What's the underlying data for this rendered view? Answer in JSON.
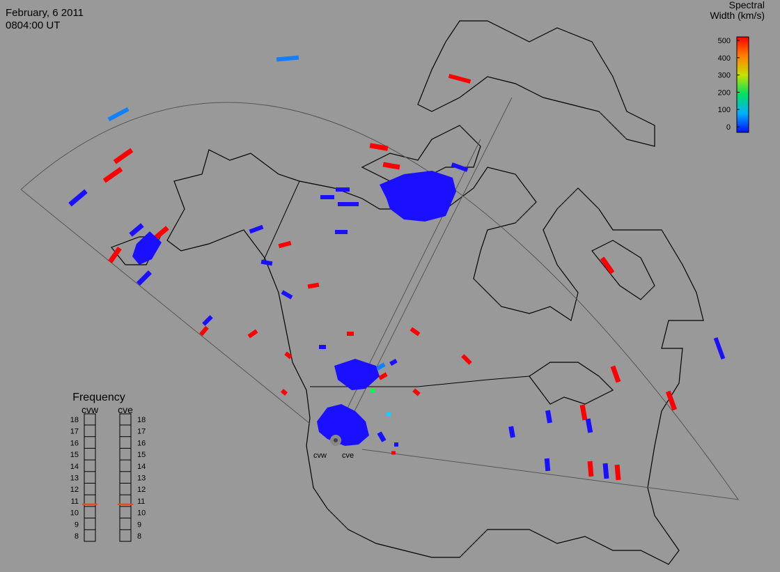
{
  "header": {
    "date": "February, 6 2011",
    "time": "0804:00 UT"
  },
  "colorbar": {
    "title_lines": [
      "Spectral",
      "Width (km/s)"
    ],
    "lim": [
      0,
      500
    ],
    "ticks": [
      0,
      100,
      200,
      300,
      400,
      500
    ]
  },
  "frequency": {
    "title": "Frequency",
    "lim": [
      8,
      18
    ],
    "ticks": [
      8,
      9,
      10,
      11,
      12,
      13,
      14,
      15,
      16,
      17,
      18
    ],
    "radars": [
      {
        "name": "cvw",
        "value": 10.7
      },
      {
        "name": "cve",
        "value": 10.7
      }
    ]
  },
  "sites": [
    "cvw",
    "cve"
  ]
}
